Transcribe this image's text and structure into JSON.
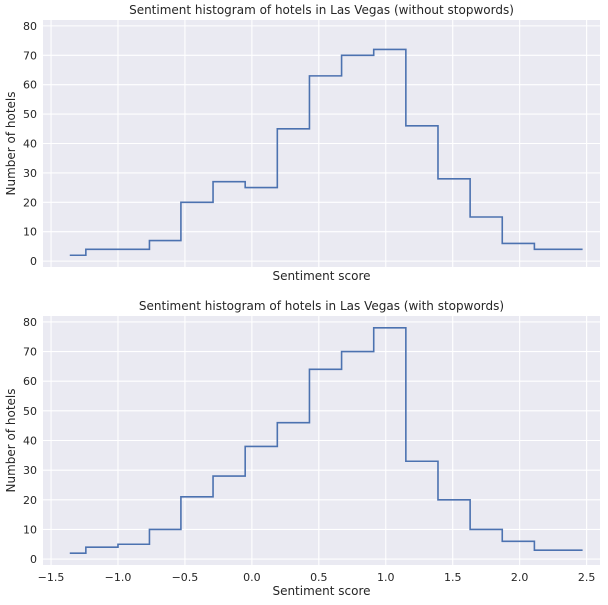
{
  "colors": {
    "background": "#ffffff",
    "plot_background": "#eaeaf2",
    "grid": "#ffffff",
    "line": "#4c72b0",
    "text": "#262626"
  },
  "chart_data": [
    {
      "type": "line",
      "drawstyle": "steps",
      "title": "Sentiment histogram of hotels in Las Vegas (without stopwords)",
      "xlabel": "Sentiment score",
      "ylabel": "Number of hotels",
      "xlim": [
        -1.56,
        2.6
      ],
      "ylim": [
        -2,
        82
      ],
      "xticks": [
        -1.5,
        -1.0,
        -0.5,
        0.0,
        0.5,
        1.0,
        1.5,
        2.0,
        2.5
      ],
      "xtick_labels_visible": false,
      "yticks": [
        0,
        10,
        20,
        30,
        40,
        50,
        60,
        70,
        80
      ],
      "grid": true,
      "series": [
        {
          "x": [
            -1.36,
            -1.12,
            -0.88,
            -0.65,
            -0.41,
            -0.17,
            0.07,
            0.31,
            0.55,
            0.79,
            1.03,
            1.27,
            1.51,
            1.75,
            1.99,
            2.23,
            2.47
          ],
          "y": [
            2,
            4,
            4,
            7,
            20,
            27,
            25,
            45,
            63,
            70,
            72,
            46,
            28,
            15,
            6,
            4,
            4
          ]
        }
      ]
    },
    {
      "type": "line",
      "drawstyle": "steps",
      "title": "Sentiment histogram of hotels in Las Vegas (with stopwords)",
      "xlabel": "Sentiment score",
      "ylabel": "Number of hotels",
      "xlim": [
        -1.56,
        2.6
      ],
      "ylim": [
        -2,
        82
      ],
      "xticks": [
        -1.5,
        -1.0,
        -0.5,
        0.0,
        0.5,
        1.0,
        1.5,
        2.0,
        2.5
      ],
      "xtick_labels_visible": true,
      "yticks": [
        0,
        10,
        20,
        30,
        40,
        50,
        60,
        70,
        80
      ],
      "grid": true,
      "series": [
        {
          "x": [
            -1.36,
            -1.12,
            -0.88,
            -0.65,
            -0.41,
            -0.17,
            0.07,
            0.31,
            0.55,
            0.79,
            1.03,
            1.27,
            1.51,
            1.75,
            1.99,
            2.23,
            2.47
          ],
          "y": [
            2,
            4,
            5,
            10,
            21,
            28,
            38,
            46,
            64,
            70,
            78,
            33,
            20,
            10,
            6,
            3,
            3
          ]
        }
      ]
    }
  ]
}
